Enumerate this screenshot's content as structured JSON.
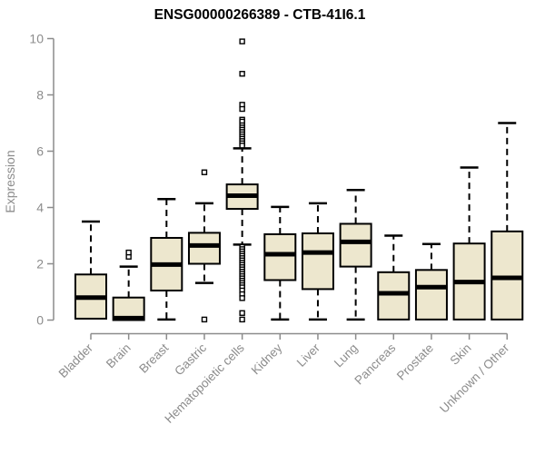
{
  "colors": {
    "background": "#ffffff",
    "box_fill": "#EDE7CE",
    "box_stroke": "#000000",
    "median_stroke": "#000000",
    "whisker_stroke": "#000000",
    "outlier_fill": "#ffffff",
    "outlier_stroke": "#000000",
    "axis_color": "#8C8C8C",
    "tick_label_color": "#8C8C8C",
    "title_color": "#000000"
  },
  "chart_data": {
    "type": "boxplot",
    "title": "ENSG00000266389 - CTB-41I6.1",
    "xlabel": "",
    "ylabel": "Expression",
    "ylim": [
      0,
      10
    ],
    "yticks": [
      0,
      2,
      4,
      6,
      8,
      10
    ],
    "grid": "off",
    "legend": "none",
    "categories": [
      "Bladder",
      "Brain",
      "Breast",
      "Gastric",
      "Hematopoietic cells",
      "Kidney",
      "Liver",
      "Lung",
      "Pancreas",
      "Prostate",
      "Skin",
      "Unknown / Other"
    ],
    "series": [
      {
        "category": "Bladder",
        "whisker_low": 0.05,
        "q1": 0.05,
        "median": 0.8,
        "q3": 1.62,
        "whisker_high": 3.5,
        "outliers": []
      },
      {
        "category": "Brain",
        "whisker_low": 0.0,
        "q1": 0.0,
        "median": 0.07,
        "q3": 0.8,
        "whisker_high": 1.9,
        "outliers": [
          2.25,
          2.4
        ]
      },
      {
        "category": "Breast",
        "whisker_low": 0.02,
        "q1": 1.05,
        "median": 1.97,
        "q3": 2.92,
        "whisker_high": 4.3,
        "outliers": []
      },
      {
        "category": "Gastric",
        "whisker_low": 1.32,
        "q1": 2.0,
        "median": 2.65,
        "q3": 3.1,
        "whisker_high": 4.15,
        "outliers": [
          5.25,
          0.02
        ]
      },
      {
        "category": "Hematopoietic cells",
        "whisker_low": 2.68,
        "q1": 3.95,
        "median": 4.42,
        "q3": 4.82,
        "whisker_high": 6.1,
        "outliers": [
          9.9,
          8.75,
          7.65,
          7.5,
          7.12,
          7.05,
          6.92,
          6.84,
          6.76,
          6.68,
          6.6,
          6.52,
          6.44,
          6.36,
          6.28,
          6.2,
          2.6,
          2.52,
          2.44,
          2.36,
          2.28,
          2.2,
          2.12,
          2.04,
          1.96,
          1.88,
          1.8,
          1.72,
          1.64,
          1.56,
          1.48,
          1.4,
          1.32,
          1.24,
          1.16,
          1.05,
          0.92,
          0.78,
          0.25,
          0.02
        ]
      },
      {
        "category": "Kidney",
        "whisker_low": 0.02,
        "q1": 1.42,
        "median": 2.34,
        "q3": 3.05,
        "whisker_high": 4.02,
        "outliers": []
      },
      {
        "category": "Liver",
        "whisker_low": 0.02,
        "q1": 1.1,
        "median": 2.4,
        "q3": 3.08,
        "whisker_high": 4.15,
        "outliers": []
      },
      {
        "category": "Lung",
        "whisker_low": 0.02,
        "q1": 1.9,
        "median": 2.78,
        "q3": 3.42,
        "whisker_high": 4.62,
        "outliers": []
      },
      {
        "category": "Pancreas",
        "whisker_low": 0.02,
        "q1": 0.02,
        "median": 0.95,
        "q3": 1.7,
        "whisker_high": 3.0,
        "outliers": []
      },
      {
        "category": "Prostate",
        "whisker_low": 0.02,
        "q1": 0.02,
        "median": 1.17,
        "q3": 1.78,
        "whisker_high": 2.7,
        "outliers": []
      },
      {
        "category": "Skin",
        "whisker_low": 0.02,
        "q1": 0.02,
        "median": 1.35,
        "q3": 2.72,
        "whisker_high": 5.42,
        "outliers": []
      },
      {
        "category": "Unknown / Other",
        "whisker_low": 0.02,
        "q1": 0.02,
        "median": 1.5,
        "q3": 3.15,
        "whisker_high": 7.0,
        "outliers": []
      }
    ]
  }
}
